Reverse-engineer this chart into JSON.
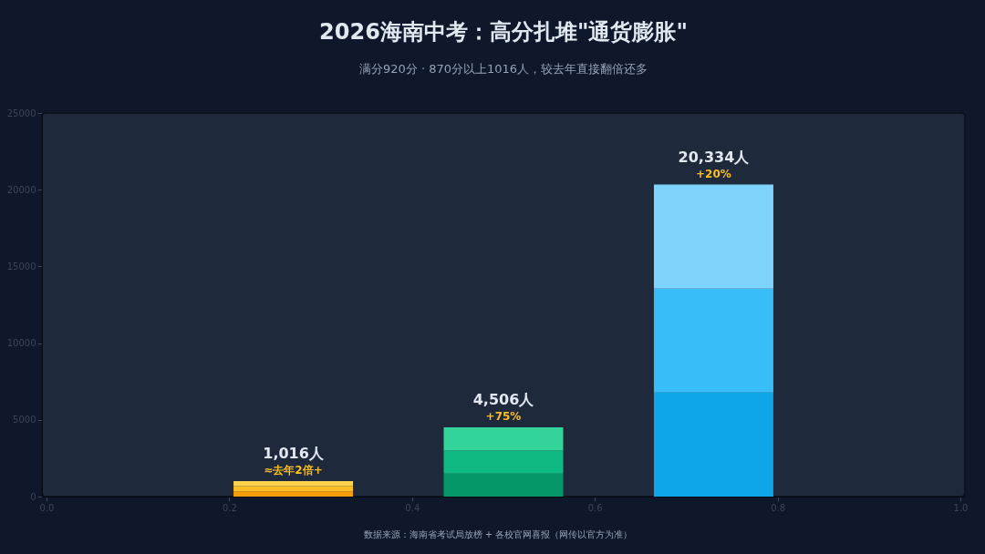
{
  "chart_data": {
    "type": "bar",
    "title": "2026海南中考：高分扎堆\"通货膨胀\"",
    "subtitle": "满分920分 · 870分以上1016人，较去年直接翻倍还多",
    "x": [
      0.27,
      0.5,
      0.73
    ],
    "stacked": true,
    "series": [
      {
        "colors": [
          "#f59e0b",
          "#059669",
          "#0ea5e9"
        ],
        "values": [
          339,
          1502,
          6778
        ]
      },
      {
        "colors": [
          "#fbbf24",
          "#10b981",
          "#38bdf8"
        ],
        "values": [
          339,
          1502,
          6778
        ]
      },
      {
        "colors": [
          "#fcd34d",
          "#34d399",
          "#7dd3fc"
        ],
        "values": [
          338,
          1502,
          6778
        ]
      }
    ],
    "totals": [
      "1,016人",
      "4,506人",
      "20,334人"
    ],
    "annotations": [
      {
        "text": "≈去年2倍+",
        "x": 0.27,
        "y": 1016
      },
      {
        "text": "+75%",
        "x": 0.5,
        "y": 4506
      },
      {
        "text": "+20%",
        "x": 0.73,
        "y": 20334
      },
      "数据来源：海南省考试局放榜 + 各校官网喜报（网传以官方为准）"
    ],
    "xlim": [
      0.0,
      1.0
    ],
    "xticks": [
      {
        "value": 0,
        "label": "0.0"
      },
      0.2,
      0.4,
      0.6,
      0.8,
      {
        "value": 1,
        "label": "1.0"
      }
    ],
    "ylim": [
      0,
      25000
    ],
    "yticks": [
      0,
      5000,
      10000,
      15000,
      20000,
      25000
    ],
    "grid": false
  }
}
